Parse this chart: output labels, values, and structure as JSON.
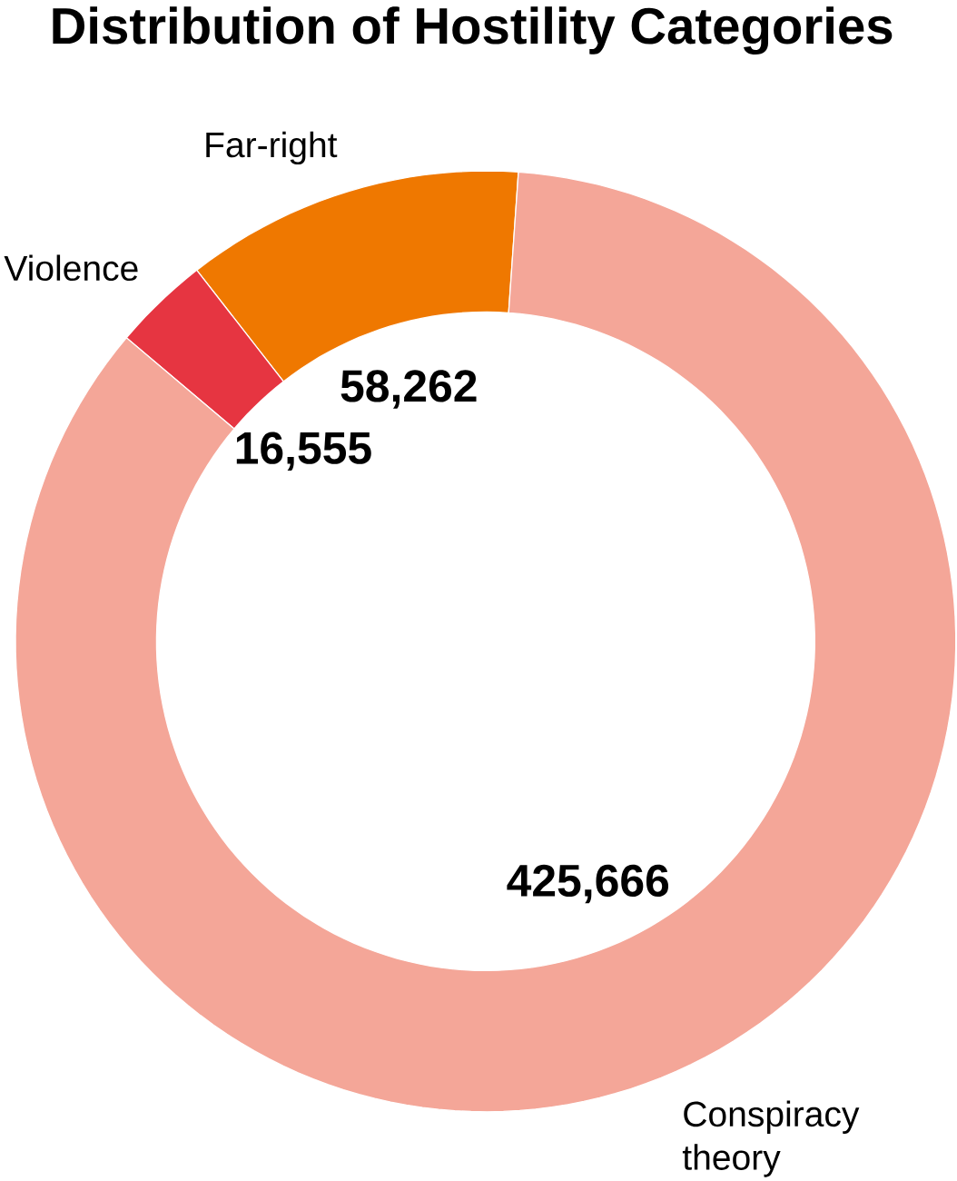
{
  "chart_data": {
    "type": "donut",
    "title": "Distribution of Hostility Categories",
    "categories": [
      "Far-right",
      "Violence",
      "Conspiracy theory"
    ],
    "values": [
      58262,
      16555,
      425666
    ],
    "colors": [
      "#ef7800",
      "#e63541",
      "#f4a698"
    ],
    "value_labels": [
      "58,262",
      "16,555",
      "425,666"
    ]
  }
}
